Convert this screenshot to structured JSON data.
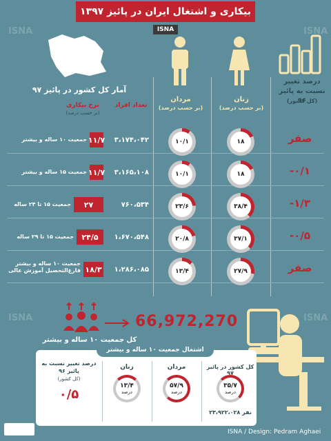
{
  "header": {
    "title": "بیکاری و اشتغال ایران در پائیز ۱۳۹۷",
    "agency": "ISNA"
  },
  "watermark": "ISNA",
  "columns": {
    "change_title": "درصد تغییر نسبت به پائیز ۹۶",
    "change_sub": "(کل کشور)",
    "women_title": "زنان",
    "women_sub": "(بر حسب درصد)",
    "men_title": "مردان",
    "men_sub": "(بر حسب درصد)",
    "stats_title": "آمار کل کشور در پائیز ۹۷",
    "unemployment_title": "نرخ بیکاری",
    "unemployment_sub": "(بر حسب درصد)",
    "count_title": "تعداد افراد"
  },
  "chart_data": {
    "type": "table",
    "title": "بیکاری و اشتغال ایران در پائیز ۱۳۹۷",
    "rows": [
      {
        "label": "جمعیت ۱۰ ساله و بیشتر",
        "count": "۳،۱۷۴،۰۴۲",
        "unemployment": "۱۱/۷",
        "unemployment_value": 11.7,
        "men": "۱۰/۱",
        "men_value": 10.1,
        "women": "۱۸",
        "women_value": 18,
        "change": "صفر",
        "change_value": 0
      },
      {
        "label": "جمعیت ۱۵ ساله و بیشتر",
        "count": "۳،۱۶۵،۱۰۸",
        "unemployment": "۱۱/۷",
        "unemployment_value": 11.7,
        "men": "۱۰/۱",
        "men_value": 10.1,
        "women": "۱۸",
        "women_value": 18,
        "change": "-۰/۱",
        "change_value": -0.1
      },
      {
        "label": "جمعیت ۱۵ تا ۲۴ ساله",
        "count": "۷۶۰،۵۳۴",
        "unemployment": "۲۷",
        "unemployment_value": 27,
        "men": "۲۳/۶",
        "men_value": 23.6,
        "women": "۳۸/۴",
        "women_value": 38.4,
        "change": "-۱/۳",
        "change_value": -1.3
      },
      {
        "label": "جمعیت ۱۵ تا ۲۹ ساله",
        "count": "۱،۶۷۰،۵۴۸",
        "unemployment": "۲۴/۵",
        "unemployment_value": 24.5,
        "men": "۲۰/۸",
        "men_value": 20.8,
        "women": "۳۷/۱",
        "women_value": 37.1,
        "change": "-۰/۵",
        "change_value": -0.5
      },
      {
        "label": "جمعیت ۱۰ ساله و بیشتر فارغ‌التحصیل آموزش عالی",
        "count": "۱،۲۸۶،۰۸۵",
        "unemployment": "۱۸/۳",
        "unemployment_value": 18.3,
        "men": "۱۳/۴",
        "men_value": 13.4,
        "women": "۲۷/۹",
        "women_value": 27.9,
        "change": "صفر",
        "change_value": 0
      }
    ]
  },
  "population": {
    "value": "66,972,270",
    "label": "کل جمعیت ۱۰ ساله و بیشتر"
  },
  "employment": {
    "panel_title": "اشتغال جمعیت ۱۰ ساله و بیشتر",
    "total_title": "کل کشور در پائیز ۹۷",
    "total_pct": "۳۵/۷",
    "total_unit": "درصد",
    "total_people": "۲۳،۹۲۲،۰۲۸ نفر",
    "men_title": "مردان",
    "men_pct": "۵۷/۹",
    "men_unit": "درصد",
    "women_title": "زنان",
    "women_pct": "۱۳/۴",
    "women_unit": "درصد",
    "change_title": "درصد تغییر نسبت به پائیز ۹۶",
    "change_sub": "(کل کشور)",
    "change_value": "۰/۵"
  },
  "footer": {
    "credit": "ISNA / Design: Pedram Aghaei"
  }
}
